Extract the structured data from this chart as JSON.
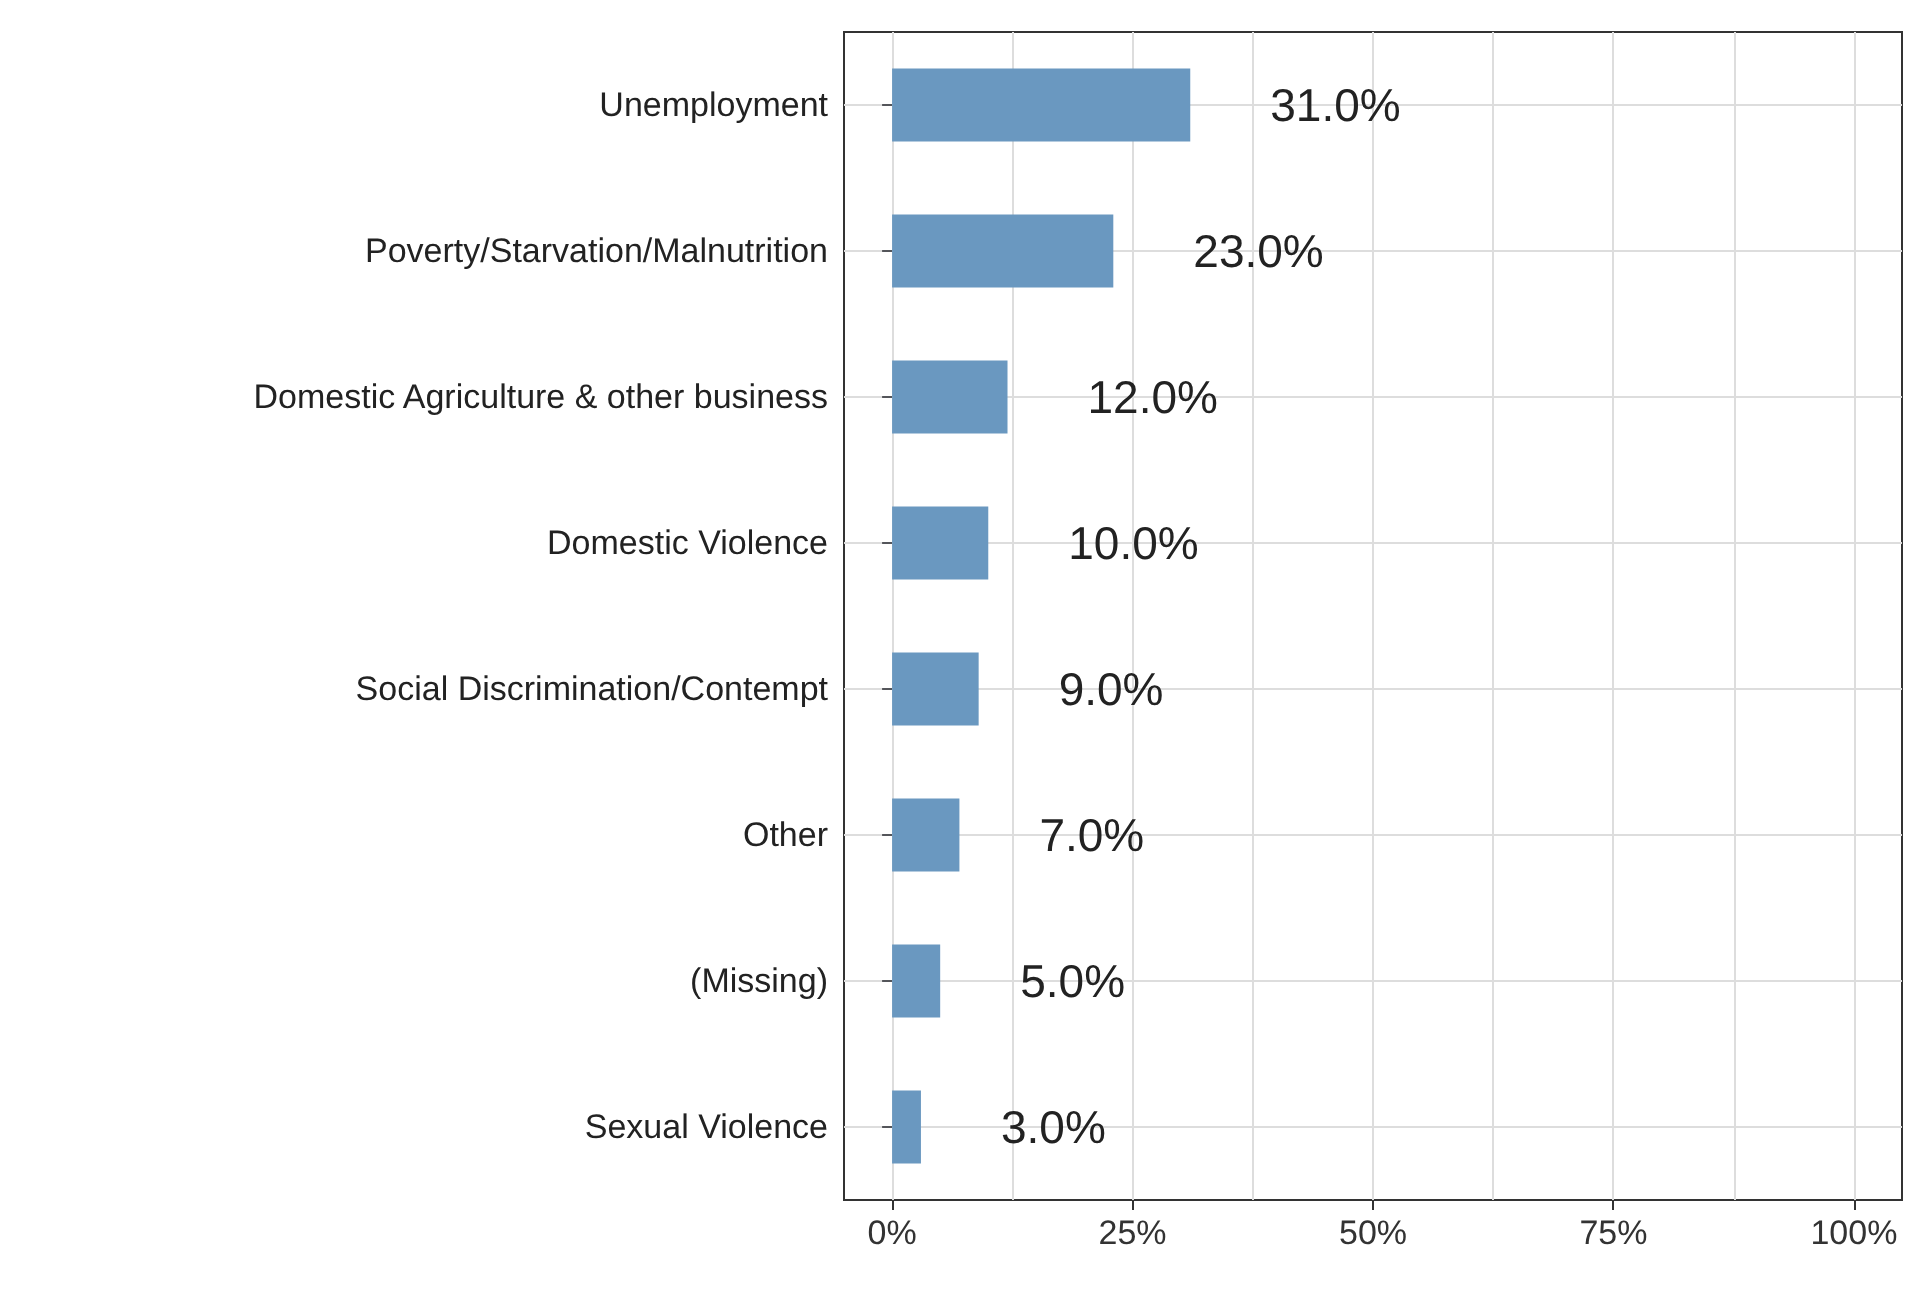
{
  "chart_data": {
    "type": "bar",
    "orientation": "horizontal",
    "categories": [
      "Unemployment",
      "Poverty/Starvation/Malnutrition",
      "Domestic Agriculture & other business",
      "Domestic Violence",
      "Social Discrimination/Contempt",
      "Other",
      "(Missing)",
      "Sexual Violence"
    ],
    "values": [
      31,
      23,
      12,
      10,
      9,
      7,
      5,
      3
    ],
    "value_labels": [
      "31.0%",
      "23.0%",
      "12.0%",
      "10.0%",
      "9.0%",
      "7.0%",
      "5.0%",
      "3.0%"
    ],
    "color": "#6a98c0",
    "xlim": [
      -5,
      105
    ],
    "xticks": [
      {
        "value": 0,
        "label": "0%"
      },
      {
        "value": 12.5,
        "label": null
      },
      {
        "value": 25,
        "label": "25%"
      },
      {
        "value": 37.5,
        "label": null
      },
      {
        "value": 50,
        "label": "50%"
      },
      {
        "value": 62.5,
        "label": null
      },
      {
        "value": 75,
        "label": "75%"
      },
      {
        "value": 87.5,
        "label": null
      },
      {
        "value": 100,
        "label": "100%"
      }
    ],
    "grid": true
  }
}
